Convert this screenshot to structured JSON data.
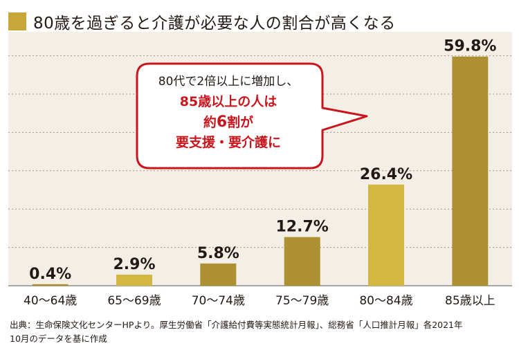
{
  "title": "80歳を過ぎると介護が必要な人の割合が高くなる",
  "callout": {
    "line1": "80代で2倍以上に増加し、",
    "line2": "85歳以上の人は",
    "line3_pre": "約",
    "line3_num": "6",
    "line3_post": "割が",
    "line4": "要支援・要介護に"
  },
  "source": {
    "line1": "出典：生命保険文化センターHPより。厚生労働省「介護給付費等実態統計月報」、総務省「人口推計月報」各2021年",
    "line2": "10月のデータを基に作成"
  },
  "colors": {
    "accent": "#c9a63a",
    "bar_light": "#d4b742",
    "bar_dark": "#ad9032",
    "plot_bg": "#f4efe6",
    "callout_border": "#c8161d",
    "callout_text": "#c8161d"
  },
  "chart_data": {
    "type": "bar",
    "categories": [
      "40〜64歳",
      "65〜69歳",
      "70〜74歳",
      "75〜79歳",
      "80〜84歳",
      "85歳以上"
    ],
    "values": [
      0.4,
      2.9,
      5.8,
      12.7,
      26.4,
      59.8
    ],
    "value_labels": [
      "0.4%",
      "2.9%",
      "5.8%",
      "12.7%",
      "26.4%",
      "59.8%"
    ],
    "bar_colors": [
      "#ad9032",
      "#d4b742",
      "#ad9032",
      "#ad9032",
      "#d4b742",
      "#ad9032"
    ],
    "ylim": [
      0,
      63
    ],
    "grid": true
  }
}
